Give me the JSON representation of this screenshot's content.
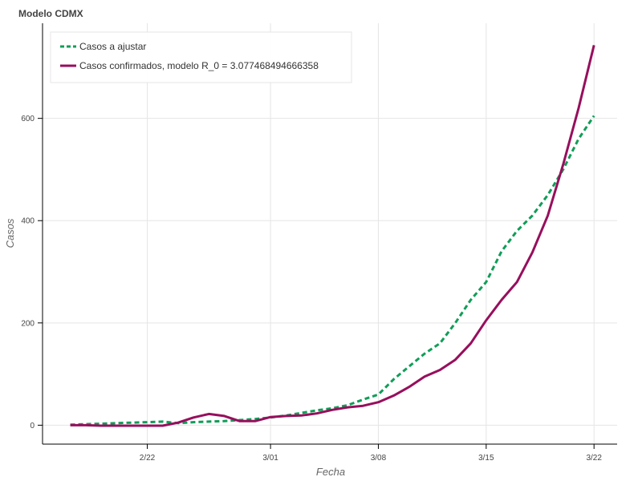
{
  "chart_data": {
    "type": "line",
    "title": "Modelo CDMX",
    "xlabel": "Fecha",
    "ylabel": "Casos",
    "x_start": "2020-02-17",
    "x_ticks": [
      {
        "day": 5,
        "label": "2/22"
      },
      {
        "day": 13,
        "label": "3/01"
      },
      {
        "day": 20,
        "label": "3/08"
      },
      {
        "day": 27,
        "label": "3/15"
      },
      {
        "day": 34,
        "label": "3/22"
      }
    ],
    "y_ticks": [
      0,
      200,
      400,
      600
    ],
    "xlim": [
      -1.8,
      35.5
    ],
    "ylim": [
      -37,
      786
    ],
    "grid": true,
    "legend_position": "top-left",
    "series": [
      {
        "name": "Casos a ajustar",
        "color": "#109d58",
        "dash": "6,4",
        "width": 3,
        "x": [
          0,
          1,
          2,
          3,
          4,
          5,
          6,
          7,
          8,
          9,
          10,
          11,
          12,
          13,
          14,
          15,
          16,
          17,
          18,
          19,
          20,
          21,
          22,
          23,
          24,
          25,
          26,
          27,
          28,
          29,
          30,
          31,
          32,
          33,
          34
        ],
        "y": [
          1,
          2,
          3,
          4,
          5,
          6,
          7,
          4,
          6,
          7,
          8,
          10,
          12,
          15,
          19,
          24,
          29,
          33,
          39,
          50,
          60,
          90,
          115,
          140,
          160,
          200,
          245,
          280,
          340,
          380,
          410,
          450,
          500,
          560,
          605
        ]
      },
      {
        "name": "Casos confirmados, modelo R_0 = 3.077468494666358",
        "color": "#970f5d",
        "dash": "",
        "width": 3,
        "x": [
          0,
          1,
          2,
          3,
          4,
          5,
          6,
          7,
          8,
          9,
          10,
          11,
          12,
          13,
          14,
          15,
          16,
          17,
          18,
          19,
          20,
          21,
          22,
          23,
          24,
          25,
          26,
          27,
          28,
          29,
          30,
          31,
          32,
          33,
          34
        ],
        "y": [
          0,
          0,
          -1,
          -1,
          -1,
          -1,
          -1,
          5,
          15,
          22,
          18,
          8,
          8,
          16,
          18,
          19,
          23,
          30,
          35,
          38,
          45,
          58,
          75,
          95,
          108,
          128,
          160,
          205,
          245,
          280,
          338,
          410,
          510,
          620,
          743
        ]
      }
    ]
  }
}
